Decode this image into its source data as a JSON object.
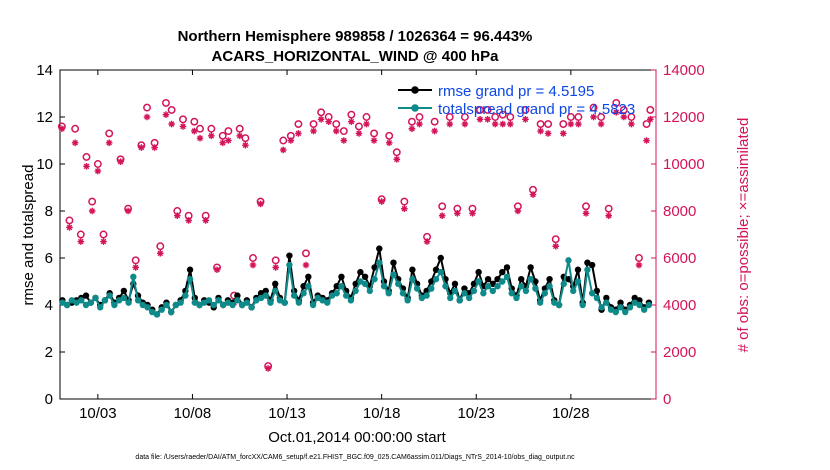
{
  "chart_data": {
    "type": "line",
    "title": "Northern Hemisphere 989858 / 1026364 = 96.443%",
    "subtitle": "ACARS_HORIZONTAL_WIND @ 400 hPa",
    "xlabel": "Oct.01,2014 00:00:00 start",
    "ylabel_left": "rmse and totalspread",
    "ylabel_right": "# of obs: o=possible; ×=assimilated",
    "footer": "data file: /Users/raeder/DAI/ATM_forcXX/CAM6_setup/f.e21.FHIST_BGC.f09_025.CAM6assim.011/Diags_NTrS_2014-10/obs_diag_output.nc",
    "xlim": [
      1,
      32.5
    ],
    "ylim_left": [
      0,
      14
    ],
    "ylim_right": [
      0,
      14000
    ],
    "x_ticks": [
      3,
      8,
      13,
      18,
      23,
      28
    ],
    "x_tick_labels": [
      "10/03",
      "10/08",
      "10/13",
      "10/18",
      "10/23",
      "10/28"
    ],
    "y_ticks_left": [
      0,
      2,
      4,
      6,
      8,
      10,
      12,
      14
    ],
    "y_ticks_right": [
      0,
      2000,
      4000,
      6000,
      8000,
      10000,
      12000,
      14000
    ],
    "legend_placement": "top-right",
    "colors": {
      "rmse": "#000000",
      "totalspread": "#0f8a8a",
      "obs": "#d4145a",
      "right_axis": "#d4145a",
      "legend_text": "#0d47e6"
    },
    "series": [
      {
        "name": "rmse grand pr = 4.5195",
        "axis": "left",
        "x": [
          1.125,
          1.375,
          1.625,
          1.875,
          2.125,
          2.375,
          2.625,
          2.875,
          3.125,
          3.375,
          3.625,
          3.875,
          4.125,
          4.375,
          4.625,
          4.875,
          5.125,
          5.375,
          5.625,
          5.875,
          6.125,
          6.375,
          6.625,
          6.875,
          7.125,
          7.375,
          7.625,
          7.875,
          8.125,
          8.375,
          8.625,
          8.875,
          9.125,
          9.375,
          9.625,
          9.875,
          10.125,
          10.375,
          10.625,
          10.875,
          11.125,
          11.375,
          11.625,
          11.875,
          12.125,
          12.375,
          12.625,
          12.875,
          13.125,
          13.375,
          13.625,
          13.875,
          14.125,
          14.375,
          14.625,
          14.875,
          15.125,
          15.375,
          15.625,
          15.875,
          16.125,
          16.375,
          16.625,
          16.875,
          17.125,
          17.375,
          17.625,
          17.875,
          18.125,
          18.375,
          18.625,
          18.875,
          19.125,
          19.375,
          19.625,
          19.875,
          20.125,
          20.375,
          20.625,
          20.875,
          21.125,
          21.375,
          21.625,
          21.875,
          22.125,
          22.375,
          22.625,
          22.875,
          23.125,
          23.375,
          23.625,
          23.875,
          24.125,
          24.375,
          24.625,
          24.875,
          25.125,
          25.375,
          25.625,
          25.875,
          26.125,
          26.375,
          26.625,
          26.875,
          27.125,
          27.375,
          27.625,
          27.875,
          28.125,
          28.375,
          28.625,
          28.875,
          29.125,
          29.375,
          29.625,
          29.875,
          30.125,
          30.375,
          30.625,
          30.875,
          31.125,
          31.375,
          31.625,
          31.875,
          32.125
        ],
        "values": [
          4.2,
          4.0,
          4.1,
          4.2,
          4.3,
          4.4,
          4.1,
          4.3,
          4.0,
          4.2,
          4.5,
          4.1,
          4.3,
          4.6,
          4.2,
          4.9,
          4.4,
          4.1,
          4.0,
          3.8,
          3.6,
          3.9,
          4.1,
          3.7,
          4.0,
          4.2,
          4.6,
          5.5,
          4.3,
          4.0,
          4.2,
          4.1,
          3.9,
          4.3,
          4.0,
          4.2,
          4.1,
          4.4,
          4.0,
          4.2,
          3.9,
          4.3,
          4.5,
          4.6,
          4.2,
          4.9,
          4.3,
          4.1,
          6.1,
          4.6,
          4.2,
          4.8,
          5.2,
          4.1,
          4.4,
          4.3,
          4.2,
          4.5,
          4.8,
          5.2,
          4.6,
          4.3,
          4.9,
          5.4,
          5.2,
          4.8,
          5.6,
          6.4,
          5.0,
          4.6,
          5.8,
          5.1,
          4.7,
          4.3,
          5.5,
          4.9,
          4.4,
          4.6,
          5.0,
          5.5,
          6.0,
          5.1,
          4.5,
          4.9,
          4.2,
          4.7,
          4.5,
          4.9,
          5.4,
          4.8,
          5.1,
          4.9,
          5.1,
          5.4,
          5.6,
          4.7,
          4.4,
          5.1,
          4.8,
          5.6,
          5.0,
          4.2,
          4.7,
          5.1,
          4.2,
          4.0,
          5.2,
          5.1,
          4.8,
          5.5,
          4.1,
          5.8,
          5.7,
          4.6,
          3.8,
          4.3,
          3.9,
          3.8,
          4.1,
          3.8,
          4.0,
          4.3,
          4.2,
          3.9,
          4.1
        ]
      },
      {
        "name": "totalspread grand pr = 4.5823",
        "axis": "left",
        "x": [
          1.125,
          1.375,
          1.625,
          1.875,
          2.125,
          2.375,
          2.625,
          2.875,
          3.125,
          3.375,
          3.625,
          3.875,
          4.125,
          4.375,
          4.625,
          4.875,
          5.125,
          5.375,
          5.625,
          5.875,
          6.125,
          6.375,
          6.625,
          6.875,
          7.125,
          7.375,
          7.625,
          7.875,
          8.125,
          8.375,
          8.625,
          8.875,
          9.125,
          9.375,
          9.625,
          9.875,
          10.125,
          10.375,
          10.625,
          10.875,
          11.125,
          11.375,
          11.625,
          11.875,
          12.125,
          12.375,
          12.625,
          12.875,
          13.125,
          13.375,
          13.625,
          13.875,
          14.125,
          14.375,
          14.625,
          14.875,
          15.125,
          15.375,
          15.625,
          15.875,
          16.125,
          16.375,
          16.625,
          16.875,
          17.125,
          17.375,
          17.625,
          17.875,
          18.125,
          18.375,
          18.625,
          18.875,
          19.125,
          19.375,
          19.625,
          19.875,
          20.125,
          20.375,
          20.625,
          20.875,
          21.125,
          21.375,
          21.625,
          21.875,
          22.125,
          22.375,
          22.625,
          22.875,
          23.125,
          23.375,
          23.625,
          23.875,
          24.125,
          24.375,
          24.625,
          24.875,
          25.125,
          25.375,
          25.625,
          25.875,
          26.125,
          26.375,
          26.625,
          26.875,
          27.125,
          27.375,
          27.625,
          27.875,
          28.125,
          28.375,
          28.625,
          28.875,
          29.125,
          29.375,
          29.625,
          29.875,
          30.125,
          30.375,
          30.625,
          30.875,
          31.125,
          31.375,
          31.625,
          31.875,
          32.125
        ],
        "values": [
          4.1,
          4.0,
          4.2,
          4.1,
          4.2,
          4.0,
          4.1,
          4.3,
          3.9,
          4.2,
          4.4,
          4.0,
          4.2,
          4.3,
          4.1,
          5.2,
          4.2,
          4.0,
          3.9,
          3.7,
          3.6,
          3.8,
          4.0,
          3.7,
          4.0,
          4.1,
          4.4,
          5.1,
          4.1,
          4.0,
          4.1,
          4.2,
          4.0,
          4.2,
          4.0,
          4.1,
          4.0,
          4.2,
          4.0,
          4.1,
          3.9,
          4.2,
          4.3,
          4.4,
          4.1,
          4.6,
          4.2,
          4.1,
          5.7,
          4.4,
          4.1,
          4.5,
          4.8,
          4.0,
          4.3,
          4.2,
          4.1,
          4.4,
          4.5,
          4.8,
          4.4,
          4.2,
          4.6,
          5.0,
          4.9,
          4.6,
          5.1,
          5.8,
          4.8,
          4.5,
          5.3,
          4.9,
          4.5,
          4.2,
          5.1,
          4.7,
          4.3,
          4.4,
          4.7,
          5.1,
          5.4,
          4.8,
          4.3,
          4.6,
          4.2,
          4.5,
          4.3,
          4.6,
          5.0,
          4.5,
          4.8,
          4.6,
          4.8,
          5.0,
          5.2,
          4.5,
          4.3,
          4.8,
          4.6,
          5.1,
          4.7,
          4.1,
          4.5,
          4.8,
          4.1,
          4.0,
          4.9,
          5.9,
          4.6,
          5.0,
          4.0,
          5.5,
          4.5,
          4.3,
          3.9,
          4.1,
          3.8,
          3.7,
          3.9,
          3.7,
          3.9,
          4.1,
          4.0,
          3.8,
          4.0
        ]
      }
    ],
    "obs_possible": {
      "x": [
        1.1,
        1.5,
        1.8,
        2.1,
        2.4,
        2.7,
        3.0,
        3.3,
        3.6,
        4.2,
        4.6,
        5.0,
        5.3,
        5.6,
        6.0,
        6.3,
        6.6,
        6.9,
        7.2,
        7.5,
        7.8,
        8.1,
        8.4,
        8.7,
        9.0,
        9.3,
        9.6,
        9.9,
        10.2,
        10.5,
        10.8,
        11.2,
        11.6,
        12.0,
        12.4,
        12.8,
        13.2,
        13.6,
        14.0,
        14.4,
        14.8,
        15.2,
        15.6,
        16.0,
        16.4,
        16.8,
        17.2,
        17.6,
        18.0,
        18.4,
        18.8,
        19.2,
        19.6,
        20.0,
        20.4,
        20.8,
        21.2,
        21.6,
        22.0,
        22.4,
        22.8,
        23.2,
        23.6,
        24.0,
        24.4,
        24.8,
        25.2,
        25.6,
        26.0,
        26.4,
        26.8,
        27.2,
        27.6,
        28.0,
        28.4,
        28.8,
        29.2,
        29.6,
        30.0,
        30.4,
        30.8,
        31.2,
        31.6,
        32.0,
        32.2
      ],
      "values": [
        11600,
        7600,
        11500,
        7000,
        10300,
        8400,
        10000,
        7000,
        11300,
        10200,
        8100,
        5900,
        10800,
        12400,
        10900,
        6500,
        12600,
        12300,
        8000,
        11900,
        7800,
        11800,
        11500,
        7800,
        11500,
        5600,
        11200,
        11400,
        4400,
        11500,
        11100,
        6000,
        8400,
        1400,
        5900,
        11000,
        11200,
        11700,
        6200,
        11700,
        12200,
        12000,
        11700,
        11400,
        12100,
        11600,
        12000,
        11300,
        8500,
        11200,
        10500,
        8400,
        11800,
        12000,
        6900,
        11800,
        8200,
        12000,
        8100,
        12000,
        8100,
        12300,
        12300,
        12000,
        12100,
        12000,
        8200,
        12300,
        8900,
        11700,
        11700,
        6800,
        11700,
        12000,
        12000,
        8200,
        12400,
        12000,
        8100,
        12600,
        12300,
        12000,
        6000,
        11700,
        12300
      ]
    },
    "obs_assimilated": {
      "x": [
        1.1,
        1.5,
        1.8,
        2.1,
        2.4,
        2.7,
        3.0,
        3.3,
        3.6,
        4.2,
        4.6,
        5.0,
        5.3,
        5.6,
        6.0,
        6.3,
        6.6,
        6.9,
        7.2,
        7.5,
        7.8,
        8.1,
        8.4,
        8.7,
        9.0,
        9.3,
        9.6,
        9.9,
        10.2,
        10.5,
        10.8,
        11.2,
        11.6,
        12.0,
        12.4,
        12.8,
        13.2,
        13.6,
        14.0,
        14.4,
        14.8,
        15.2,
        15.6,
        16.0,
        16.4,
        16.8,
        17.2,
        17.6,
        18.0,
        18.4,
        18.8,
        19.2,
        19.6,
        20.0,
        20.4,
        20.8,
        21.2,
        21.6,
        22.0,
        22.4,
        22.8,
        23.2,
        23.6,
        24.0,
        24.4,
        24.8,
        25.2,
        25.6,
        26.0,
        26.4,
        26.8,
        27.2,
        27.6,
        28.0,
        28.4,
        28.8,
        29.2,
        29.6,
        30.0,
        30.4,
        30.8,
        31.2,
        31.6,
        32.0,
        32.2
      ],
      "values": [
        11500,
        7300,
        10900,
        6700,
        9900,
        8000,
        9700,
        6700,
        10900,
        10100,
        8000,
        5600,
        10700,
        12000,
        10700,
        6200,
        12100,
        11700,
        7800,
        11600,
        7600,
        11400,
        11100,
        7600,
        11200,
        5500,
        10900,
        11000,
        4100,
        11200,
        10800,
        5700,
        8300,
        1300,
        5600,
        10600,
        11000,
        11300,
        5700,
        11400,
        11900,
        11800,
        11400,
        11000,
        11800,
        11300,
        11700,
        11000,
        8400,
        10900,
        10200,
        8100,
        11500,
        11700,
        6700,
        11400,
        7800,
        11700,
        7900,
        11700,
        7900,
        11900,
        11900,
        11700,
        11700,
        11700,
        8000,
        11900,
        8700,
        11400,
        11300,
        6500,
        11300,
        11700,
        11700,
        7900,
        12000,
        11700,
        7800,
        12200,
        12000,
        11700,
        5700,
        11000,
        11900
      ]
    }
  }
}
